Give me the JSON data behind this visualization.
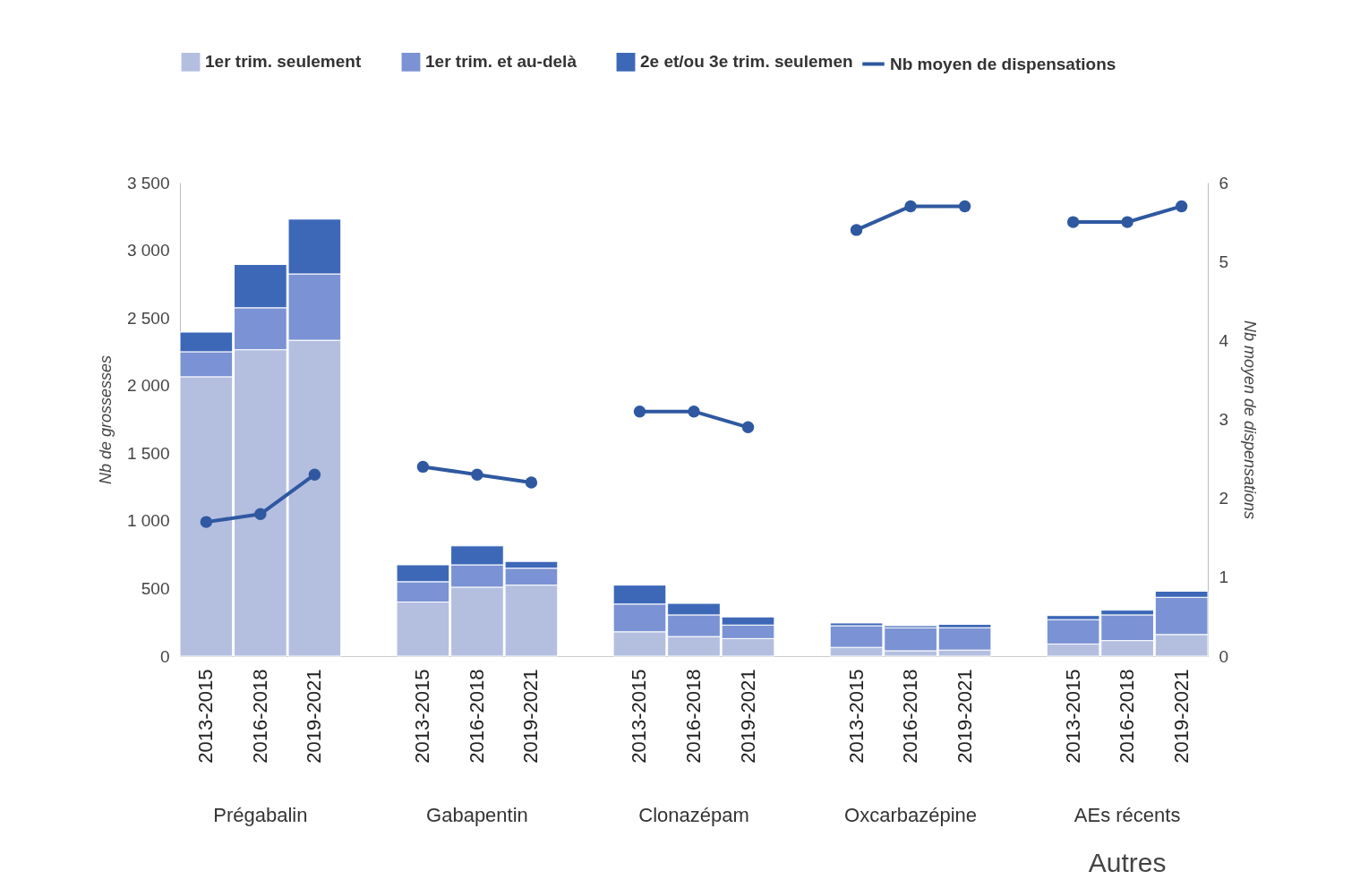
{
  "chart_data": {
    "type": "bar",
    "stacked": true,
    "categories": [
      "2013-2015",
      "2016-2018",
      "2019-2021",
      null,
      "2013-2015",
      "2016-2018",
      "2019-2021",
      null,
      "2013-2015",
      "2016-2018",
      "2019-2021",
      null,
      "2013-2015",
      "2016-2018",
      "2019-2021",
      null,
      "2013-2015",
      "2016-2018",
      "2019-2021"
    ],
    "series": [
      {
        "name": "1er trim. seulement",
        "color": "#b4bfe0",
        "type": "bar",
        "values": [
          2065,
          2265,
          2335,
          null,
          400,
          510,
          525,
          null,
          180,
          145,
          130,
          null,
          65,
          40,
          45,
          null,
          90,
          115,
          160
        ]
      },
      {
        "name": "1er trim. et au-delà",
        "color": "#7b93d4",
        "type": "bar",
        "values": [
          185,
          310,
          490,
          null,
          150,
          165,
          125,
          null,
          205,
          160,
          100,
          null,
          160,
          170,
          165,
          null,
          180,
          190,
          275
        ]
      },
      {
        "name": "2e et/ou 3e trim. seulemen",
        "color": "#3d68b8",
        "type": "bar",
        "values": [
          145,
          320,
          405,
          null,
          125,
          140,
          50,
          null,
          140,
          85,
          60,
          null,
          20,
          15,
          25,
          null,
          30,
          35,
          45
        ]
      },
      {
        "name": "Nb moyen de dispensations",
        "color": "#2f58a0",
        "type": "line",
        "axis": "y2",
        "values": [
          1.7,
          1.8,
          2.3,
          null,
          2.4,
          2.3,
          2.2,
          null,
          3.1,
          3.1,
          2.9,
          null,
          5.4,
          5.7,
          5.7,
          null,
          5.5,
          5.5,
          5.7
        ]
      }
    ],
    "ylabel": "Nb de grossesses",
    "y2label": "Nb moyen de dispensations",
    "ylim": [
      0,
      3500
    ],
    "yticks": [
      0,
      {
        "value": 500,
        "label": "500"
      },
      {
        "value": 1000,
        "label": "1 000"
      },
      {
        "value": 1500,
        "label": "1 500"
      },
      {
        "value": 2000,
        "label": "2 000"
      },
      {
        "value": 2500,
        "label": "2 500"
      },
      {
        "value": 3000,
        "label": "3 000"
      },
      {
        "value": 3500,
        "label": "3 500"
      }
    ],
    "y2lim": [
      0,
      6
    ],
    "y2ticks": [
      0,
      1,
      2,
      3,
      4,
      5,
      6
    ],
    "marker": "circle",
    "legend": "top",
    "grid": false,
    "annotations": [
      "Prégabalin",
      "Gabapentin",
      "Clonazépam",
      "Oxcarbazépine",
      "AEs récents",
      "Autres"
    ]
  }
}
